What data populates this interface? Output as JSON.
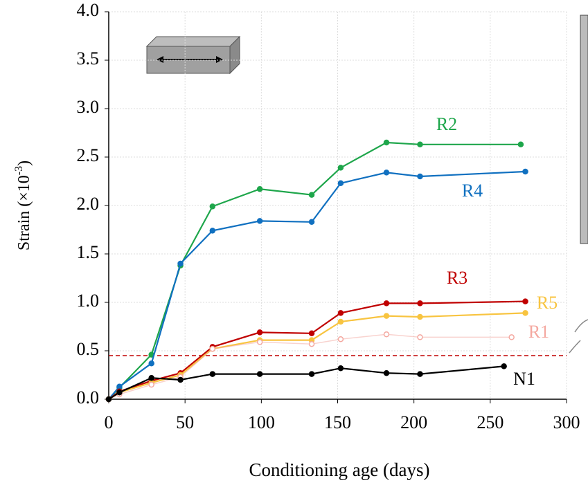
{
  "chart_data": {
    "type": "line",
    "x_label": "Conditioning age (days)",
    "y_label": "Strain (×10",
    "y_label_exponent": "-3",
    "y_label_suffix": ")",
    "xlim": [
      0,
      300
    ],
    "xticks": [
      0,
      50,
      100,
      150,
      200,
      250,
      300
    ],
    "ylim": [
      0,
      4
    ],
    "yticks": [
      {
        "value": 0,
        "label": "0.0"
      },
      {
        "value": 0.5,
        "label": "0.5"
      },
      {
        "value": 1,
        "label": "1.0"
      },
      {
        "value": 1.5,
        "label": "1.5"
      },
      {
        "value": 2,
        "label": "2.0"
      },
      {
        "value": 2.5,
        "label": "2.5"
      },
      {
        "value": 3,
        "label": "3.0"
      },
      {
        "value": 3.5,
        "label": "3.5"
      },
      {
        "value": 4,
        "label": "4.0"
      }
    ],
    "grid": true,
    "reference_line": {
      "value": 0.45,
      "color": "#c00000"
    },
    "series": [
      {
        "name": "R2",
        "color": "#1ea64b",
        "x": [
          0,
          7,
          28,
          47,
          68,
          99,
          133,
          152,
          182,
          204,
          270
        ],
        "values": [
          0,
          0.12,
          0.46,
          1.38,
          1.99,
          2.17,
          2.11,
          2.39,
          2.65,
          2.63,
          2.63
        ]
      },
      {
        "name": "R4",
        "color": "#1070c0",
        "x": [
          0,
          7,
          28,
          47,
          68,
          99,
          133,
          152,
          182,
          204,
          273
        ],
        "values": [
          0,
          0.13,
          0.37,
          1.4,
          1.74,
          1.84,
          1.83,
          2.23,
          2.34,
          2.3,
          2.35
        ]
      },
      {
        "name": "R3",
        "color": "#c00000",
        "x": [
          0,
          7,
          28,
          47,
          68,
          99,
          133,
          152,
          182,
          204,
          273
        ],
        "values": [
          0,
          0.08,
          0.19,
          0.27,
          0.54,
          0.69,
          0.68,
          0.89,
          0.99,
          0.99,
          1.01
        ]
      },
      {
        "name": "R5",
        "color": "#f8c440",
        "x": [
          0,
          7,
          28,
          47,
          68,
          99,
          133,
          152,
          182,
          204,
          273
        ],
        "values": [
          0,
          0.07,
          0.17,
          0.25,
          0.52,
          0.61,
          0.61,
          0.8,
          0.86,
          0.85,
          0.89
        ]
      },
      {
        "name": "R1",
        "color": "#f4a8a0",
        "x": [
          0,
          7,
          28,
          47,
          68,
          99,
          133,
          152,
          182,
          204,
          264
        ],
        "values": [
          0,
          0.05,
          0.15,
          0.23,
          0.52,
          0.59,
          0.57,
          0.62,
          0.67,
          0.64,
          0.64
        ]
      },
      {
        "name": "N1",
        "color": "#000000",
        "x": [
          0,
          7,
          28,
          47,
          68,
          99,
          133,
          152,
          182,
          204,
          259
        ],
        "values": [
          0,
          0.07,
          0.22,
          0.2,
          0.26,
          0.26,
          0.26,
          0.32,
          0.27,
          0.26,
          0.34
        ]
      }
    ]
  }
}
